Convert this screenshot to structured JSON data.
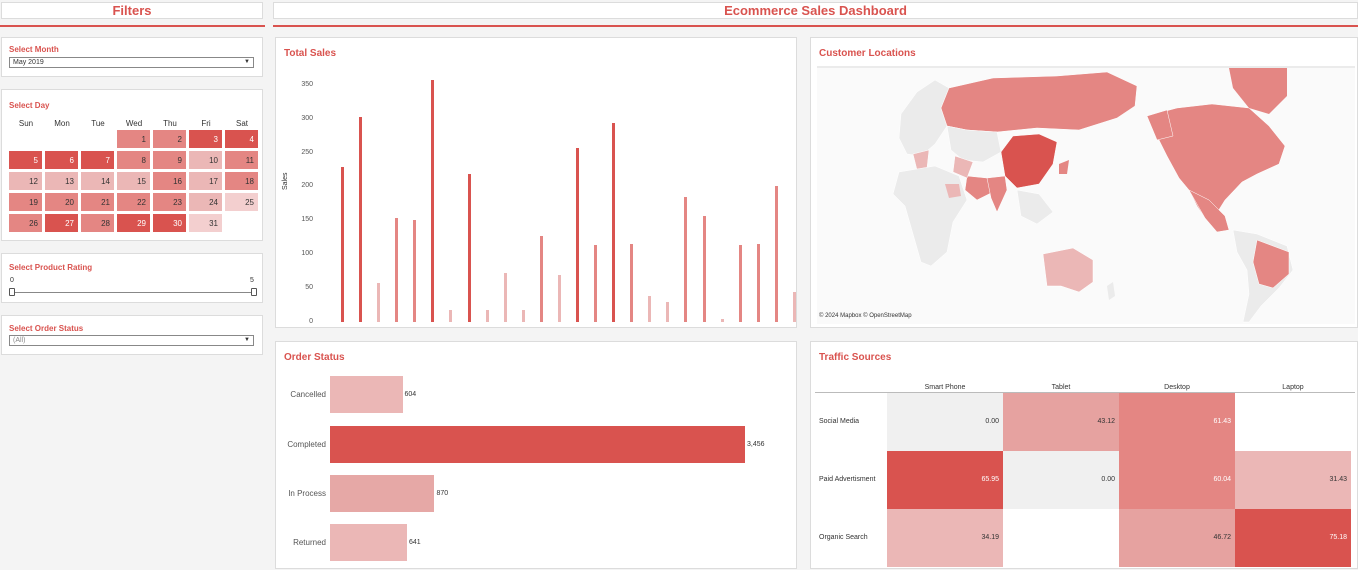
{
  "headers": {
    "filters": "Filters",
    "dashboard": "Ecommerce Sales Dashboard"
  },
  "filters": {
    "month_label": "Select Month",
    "month_value": "May 2019",
    "day_label": "Select Day",
    "weekdays": [
      "Sun",
      "Mon",
      "Tue",
      "Wed",
      "Thu",
      "Fri",
      "Sat"
    ],
    "days": [
      "1",
      "2",
      "3",
      "4",
      "5",
      "6",
      "7",
      "8",
      "9",
      "10",
      "11",
      "12",
      "13",
      "14",
      "15",
      "16",
      "17",
      "18",
      "19",
      "20",
      "21",
      "22",
      "23",
      "24",
      "25",
      "26",
      "27",
      "28",
      "29",
      "30",
      "31"
    ],
    "day_start_col": 3,
    "rating_label": "Select Product Rating",
    "rating_min": "0",
    "rating_max": "5",
    "status_label": "Select Order Status",
    "status_value": "(All)"
  },
  "colors": {
    "accent": "#d9534f",
    "dark": "#d9534f",
    "mid": "#e48683",
    "light": "#ebb7b6",
    "pale": "#f0f0f0"
  },
  "total_sales": {
    "title": "Total Sales",
    "chart_data": {
      "type": "bar",
      "title": "Total Sales",
      "ylabel": "Sales",
      "ylim": [
        0,
        360
      ],
      "yticks": [
        "0",
        "50",
        "100",
        "150",
        "200",
        "250",
        "300",
        "350"
      ],
      "values": [
        228,
        303,
        57,
        153,
        150,
        357,
        17,
        218,
        18,
        73,
        17,
        127,
        70,
        257,
        113,
        293,
        115,
        38,
        30,
        185,
        157,
        5,
        113,
        115,
        200,
        44
      ]
    }
  },
  "customer_locations": {
    "title": "Customer Locations",
    "credit": "© 2024 Mapbox  © OpenStreetMap"
  },
  "order_status": {
    "title": "Order Status",
    "chart_data": {
      "type": "bar",
      "orientation": "horizontal",
      "categories": [
        "Cancelled",
        "Completed",
        "In Process",
        "Returned"
      ],
      "values": [
        604,
        3456,
        870,
        641
      ],
      "value_labels": [
        "604",
        "3,456",
        "870",
        "641"
      ]
    }
  },
  "traffic_sources": {
    "title": "Traffic Sources",
    "chart_data": {
      "type": "heatmap",
      "columns": [
        "Smart Phone",
        "Tablet",
        "Desktop",
        "Laptop"
      ],
      "rows": [
        "Social Media",
        "Paid Advertisment",
        "Organic Search"
      ],
      "values": [
        [
          "0.00",
          "43.12",
          "61.43",
          ""
        ],
        [
          "65.95",
          "0.00",
          "60.04",
          "31.43"
        ],
        [
          "34.19",
          "",
          "46.72",
          "75.18"
        ]
      ]
    }
  }
}
